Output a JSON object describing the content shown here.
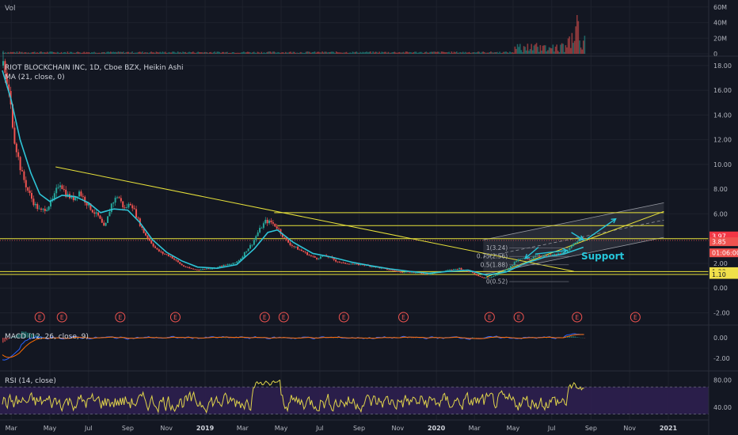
{
  "volume_pane": {
    "title": "Vol",
    "axis_labels": [
      "60M",
      "40M",
      "20M",
      "0"
    ]
  },
  "price_pane": {
    "symbol_line": "RIOT BLOCKCHAIN INC, 1D, Cboe BZX, Heikin Ashi",
    "ma_line": "MA (21, close, 0)",
    "axis_labels": [
      "18.00",
      "16.00",
      "14.00",
      "12.00",
      "10.00",
      "8.00",
      "6.00",
      "4.00",
      "2.00",
      "0.00",
      "-2.00"
    ],
    "price_tags": [
      {
        "label": "3.97",
        "color": "#f23645"
      },
      {
        "label": "3.85",
        "color": "#ef5350"
      },
      {
        "label": "01:06:00",
        "color": "#ef5350"
      },
      {
        "label": "1.33",
        "color": "#f0e04a"
      },
      {
        "label": "1.10",
        "color": "#f0e04a"
      }
    ],
    "fib_labels": [
      "1(3.24)",
      "0.75(2.56)",
      "0.5(1.88)",
      "0(0.52)"
    ],
    "annotation": "Support",
    "event_marker": "E"
  },
  "macd_pane": {
    "title": "MACD (12, 26, close, 9)",
    "axis_labels": [
      "0.00",
      "-2.00"
    ]
  },
  "rsi_pane": {
    "title": "RSI (14, close)",
    "axis_labels": [
      "80.00",
      "40.00"
    ]
  },
  "time_axis": [
    "Mar",
    "May",
    "Jul",
    "Sep",
    "Nov",
    "2019",
    "Mar",
    "May",
    "Jul",
    "Sep",
    "Nov",
    "2020",
    "Mar",
    "May",
    "Jul",
    "Sep",
    "Nov",
    "2021"
  ],
  "colors": {
    "background": "#131722",
    "candle_up": "#26a69a",
    "candle_down": "#ef5350",
    "ma": "#2ec4d6",
    "trendline": "#e8e23a",
    "rsi_band": "#2e1f4f",
    "macd_line": "#2962ff",
    "signal_line": "#ff6d00"
  },
  "chart_data": {
    "type": "candlestick",
    "title": "RIOT BLOCKCHAIN INC, 1D, Cboe BZX, Heikin Ashi",
    "ylim": [
      -2.8,
      18.5
    ],
    "x_range": [
      "2018-02-15",
      "2021-01-31"
    ],
    "price_series": [
      [
        "2018-02-15",
        18.0
      ],
      [
        "2018-02-25",
        15.5
      ],
      [
        "2018-03-05",
        12.0
      ],
      [
        "2018-03-15",
        9.5
      ],
      [
        "2018-03-25",
        8.0
      ],
      [
        "2018-04-05",
        6.8
      ],
      [
        "2018-04-15",
        6.2
      ],
      [
        "2018-04-25",
        6.5
      ],
      [
        "2018-05-05",
        7.2
      ],
      [
        "2018-05-15",
        8.6
      ],
      [
        "2018-05-25",
        7.6
      ],
      [
        "2018-06-05",
        7.2
      ],
      [
        "2018-06-15",
        7.8
      ],
      [
        "2018-06-25",
        7.0
      ],
      [
        "2018-07-05",
        6.3
      ],
      [
        "2018-07-15",
        5.8
      ],
      [
        "2018-07-25",
        4.8
      ],
      [
        "2018-08-05",
        6.8
      ],
      [
        "2018-08-15",
        7.5
      ],
      [
        "2018-08-25",
        6.4
      ],
      [
        "2018-09-05",
        6.9
      ],
      [
        "2018-09-15",
        5.6
      ],
      [
        "2018-09-25",
        4.5
      ],
      [
        "2018-10-05",
        3.8
      ],
      [
        "2018-10-15",
        3.1
      ],
      [
        "2018-10-25",
        2.8
      ],
      [
        "2018-11-05",
        2.6
      ],
      [
        "2018-11-15",
        2.2
      ],
      [
        "2018-11-25",
        1.8
      ],
      [
        "2018-12-05",
        1.6
      ],
      [
        "2018-12-15",
        1.5
      ],
      [
        "2018-12-25",
        1.5
      ],
      [
        "2019-01-05",
        1.6
      ],
      [
        "2019-01-15",
        1.6
      ],
      [
        "2019-01-25",
        1.8
      ],
      [
        "2019-02-05",
        1.9
      ],
      [
        "2019-02-15",
        2.0
      ],
      [
        "2019-02-25",
        2.4
      ],
      [
        "2019-03-05",
        3.0
      ],
      [
        "2019-03-15",
        3.6
      ],
      [
        "2019-03-25",
        4.6
      ],
      [
        "2019-04-05",
        5.4
      ],
      [
        "2019-04-15",
        5.3
      ],
      [
        "2019-04-25",
        4.8
      ],
      [
        "2019-05-05",
        4.0
      ],
      [
        "2019-05-15",
        3.5
      ],
      [
        "2019-05-25",
        3.2
      ],
      [
        "2019-06-05",
        2.9
      ],
      [
        "2019-06-15",
        2.6
      ],
      [
        "2019-06-25",
        2.4
      ],
      [
        "2019-07-05",
        2.6
      ],
      [
        "2019-07-15",
        2.5
      ],
      [
        "2019-07-25",
        2.2
      ],
      [
        "2019-08-05",
        2.0
      ],
      [
        "2019-08-15",
        2.0
      ],
      [
        "2019-08-25",
        1.9
      ],
      [
        "2019-09-05",
        1.9
      ],
      [
        "2019-09-15",
        1.8
      ],
      [
        "2019-09-25",
        1.7
      ],
      [
        "2019-10-05",
        1.6
      ],
      [
        "2019-10-15",
        1.5
      ],
      [
        "2019-10-25",
        1.4
      ],
      [
        "2019-11-05",
        1.3
      ],
      [
        "2019-11-15",
        1.3
      ],
      [
        "2019-11-25",
        1.25
      ],
      [
        "2019-12-05",
        1.2
      ],
      [
        "2019-12-15",
        1.15
      ],
      [
        "2019-12-25",
        1.2
      ],
      [
        "2020-01-05",
        1.3
      ],
      [
        "2020-01-15",
        1.4
      ],
      [
        "2020-01-25",
        1.5
      ],
      [
        "2020-02-05",
        1.6
      ],
      [
        "2020-02-15",
        1.4
      ],
      [
        "2020-02-25",
        1.3
      ],
      [
        "2020-03-05",
        1.0
      ],
      [
        "2020-03-15",
        0.8
      ],
      [
        "2020-03-25",
        0.9
      ],
      [
        "2020-04-05",
        1.1
      ],
      [
        "2020-04-15",
        1.4
      ],
      [
        "2020-04-25",
        1.7
      ],
      [
        "2020-05-05",
        2.2
      ],
      [
        "2020-05-15",
        2.4
      ],
      [
        "2020-05-25",
        2.3
      ],
      [
        "2020-06-05",
        2.7
      ],
      [
        "2020-06-15",
        2.6
      ],
      [
        "2020-06-25",
        2.6
      ],
      [
        "2020-07-05",
        2.7
      ],
      [
        "2020-07-15",
        2.8
      ],
      [
        "2020-07-25",
        3.0
      ],
      [
        "2020-08-05",
        3.6
      ],
      [
        "2020-08-15",
        4.2
      ],
      [
        "2020-08-21",
        3.85
      ]
    ],
    "ma_series": [
      [
        "2018-02-15",
        17.6
      ],
      [
        "2018-03-01",
        15.2
      ],
      [
        "2018-03-15",
        12.0
      ],
      [
        "2018-04-01",
        9.3
      ],
      [
        "2018-04-15",
        7.6
      ],
      [
        "2018-05-01",
        7.0
      ],
      [
        "2018-05-20",
        7.5
      ],
      [
        "2018-06-10",
        7.4
      ],
      [
        "2018-07-01",
        6.9
      ],
      [
        "2018-07-20",
        6.1
      ],
      [
        "2018-08-10",
        6.4
      ],
      [
        "2018-09-01",
        6.3
      ],
      [
        "2018-09-20",
        5.3
      ],
      [
        "2018-10-10",
        3.9
      ],
      [
        "2018-11-01",
        2.9
      ],
      [
        "2018-11-25",
        2.2
      ],
      [
        "2018-12-20",
        1.7
      ],
      [
        "2019-01-20",
        1.6
      ],
      [
        "2019-02-20",
        1.9
      ],
      [
        "2019-03-20",
        3.2
      ],
      [
        "2019-04-10",
        4.5
      ],
      [
        "2019-04-25",
        4.7
      ],
      [
        "2019-05-20",
        3.7
      ],
      [
        "2019-06-20",
        2.8
      ],
      [
        "2019-07-20",
        2.5
      ],
      [
        "2019-08-20",
        2.1
      ],
      [
        "2019-09-20",
        1.8
      ],
      [
        "2019-10-20",
        1.55
      ],
      [
        "2019-11-20",
        1.35
      ],
      [
        "2019-12-20",
        1.2
      ],
      [
        "2020-01-20",
        1.35
      ],
      [
        "2020-02-20",
        1.45
      ],
      [
        "2020-03-20",
        1.05
      ],
      [
        "2020-04-20",
        1.3
      ],
      [
        "2020-05-20",
        2.0
      ],
      [
        "2020-06-20",
        2.5
      ],
      [
        "2020-07-20",
        2.75
      ],
      [
        "2020-08-20",
        3.3
      ]
    ],
    "horizontal_levels": [
      6.1,
      5.05,
      4.0,
      1.33,
      1.1
    ],
    "current_price": 3.85,
    "fib_levels": [
      {
        "ratio": "1",
        "price": 3.24
      },
      {
        "ratio": "0.75",
        "price": 2.56
      },
      {
        "ratio": "0.5",
        "price": 1.88
      },
      {
        "ratio": "0",
        "price": 0.52
      }
    ],
    "volume_ylim": [
      0,
      65
    ],
    "volume_unit": "M",
    "macd_ylim": [
      -3.0,
      1.0
    ],
    "rsi_ylim": [
      25,
      90
    ],
    "rsi_band": [
      30,
      70
    ]
  }
}
